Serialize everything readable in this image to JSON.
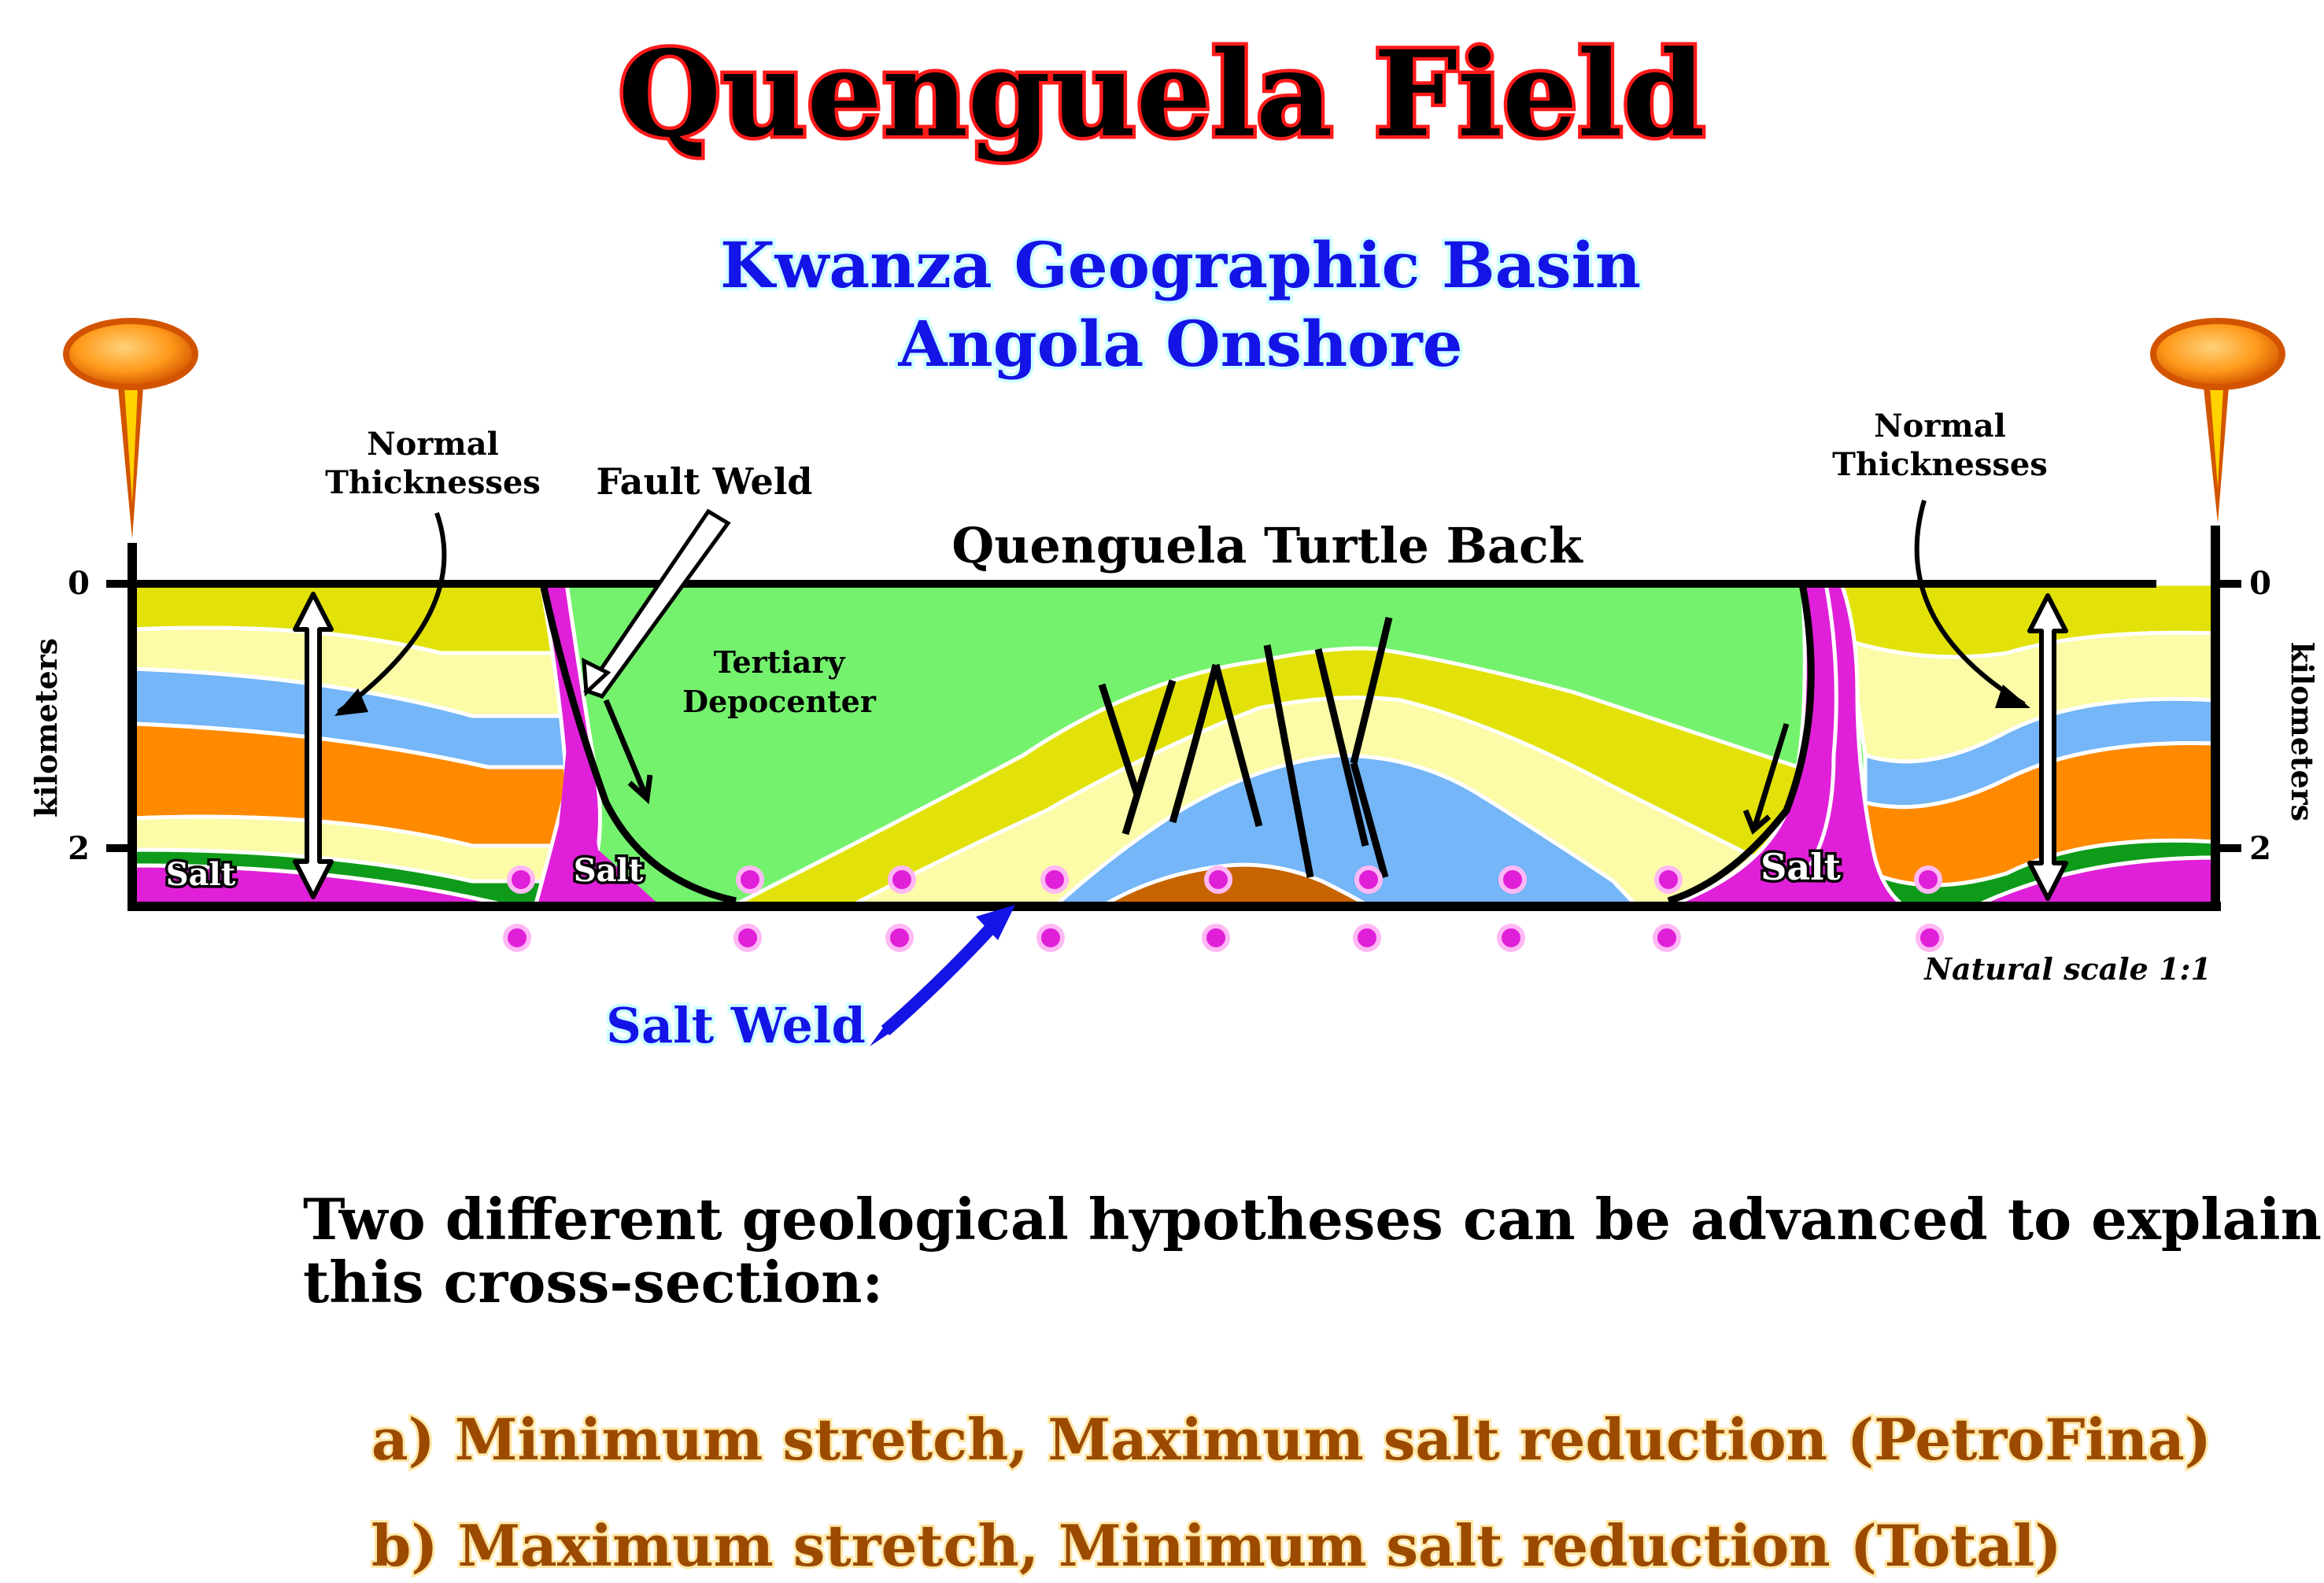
{
  "title": "Quenguela Field",
  "subtitle": {
    "line1": "Kwanza Geographic Basin",
    "line2": "Angola Onshore"
  },
  "section_labels": {
    "normal_thicknesses_left": [
      "Normal",
      "Thicknesses"
    ],
    "normal_thicknesses_right": [
      "Normal",
      "Thicknesses"
    ],
    "fault_weld": "Fault Weld",
    "turtle_back": "Quenguela Turtle Back",
    "depocenter": [
      "Tertiary",
      "Depocenter"
    ],
    "salt": "Salt",
    "salt_weld": "Salt Weld",
    "scale": "Natural scale 1:1"
  },
  "axes": {
    "label": "kilometers",
    "tick_0": "0",
    "tick_2": "2"
  },
  "text": {
    "intro_line1": "Two different geological hypotheses can be advanced to explain",
    "intro_line2": "this cross-section:",
    "hypothesis_a": "a) Minimum stretch, Maximum salt reduction (PetroFina)",
    "hypothesis_b": "b) Maximum stretch, Minimum salt reduction (Total)"
  },
  "colors": {
    "title_red": "#ff1a1a",
    "subtitle_blue": "#1414e6",
    "hypothesis_brown": "#9b4a00",
    "salt": "#e020d8",
    "tertiary_green": "#74f26e",
    "yellow_olive": "#e2e20a",
    "pale_yellow": "#fbfba8",
    "sky_blue": "#74b6f7",
    "orange": "#ff8a00",
    "dark_green": "#0f9b1a",
    "basement_brown": "#c86400"
  }
}
